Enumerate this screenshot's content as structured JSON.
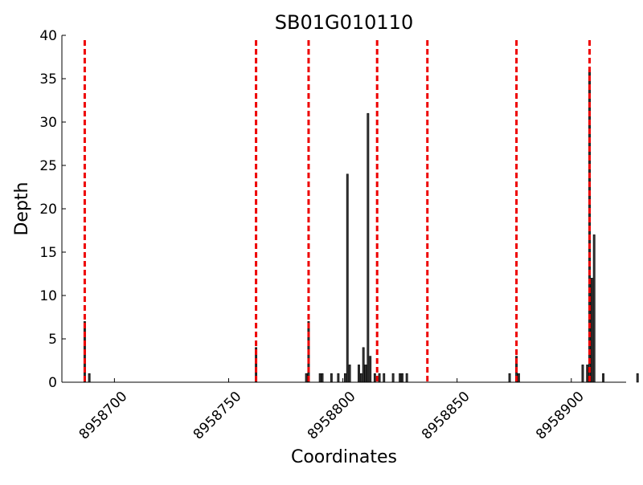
{
  "chart_data": {
    "type": "bar",
    "title": "SB01G010110",
    "xlabel": "Coordinates",
    "ylabel": "Depth",
    "xlim": [
      8958677,
      8958924
    ],
    "ylim": [
      0,
      40
    ],
    "xticks": [
      8958700,
      8958750,
      8958800,
      8958850,
      8958900
    ],
    "yticks": [
      0,
      5,
      10,
      15,
      20,
      25,
      30,
      35,
      40
    ],
    "grid": false,
    "bar_color": "#333333",
    "marker_color": "#ee0000",
    "vertical_markers": [
      8958687,
      8958762,
      8958785,
      8958815,
      8958837,
      8958876,
      8958908
    ],
    "bars": [
      {
        "x": 8958687,
        "y": 7
      },
      {
        "x": 8958689,
        "y": 1
      },
      {
        "x": 8958762,
        "y": 4
      },
      {
        "x": 8958784,
        "y": 1
      },
      {
        "x": 8958785,
        "y": 7
      },
      {
        "x": 8958790,
        "y": 1
      },
      {
        "x": 8958791,
        "y": 1
      },
      {
        "x": 8958795,
        "y": 1
      },
      {
        "x": 8958798,
        "y": 1
      },
      {
        "x": 8958801,
        "y": 1
      },
      {
        "x": 8958802,
        "y": 24
      },
      {
        "x": 8958803,
        "y": 2
      },
      {
        "x": 8958807,
        "y": 2
      },
      {
        "x": 8958808,
        "y": 1
      },
      {
        "x": 8958809,
        "y": 4
      },
      {
        "x": 8958810,
        "y": 2
      },
      {
        "x": 8958811,
        "y": 31
      },
      {
        "x": 8958812,
        "y": 3
      },
      {
        "x": 8958814,
        "y": 1
      },
      {
        "x": 8958816,
        "y": 1
      },
      {
        "x": 8958818,
        "y": 1
      },
      {
        "x": 8958822,
        "y": 1
      },
      {
        "x": 8958825,
        "y": 1
      },
      {
        "x": 8958826,
        "y": 1
      },
      {
        "x": 8958828,
        "y": 1
      },
      {
        "x": 8958873,
        "y": 1
      },
      {
        "x": 8958876,
        "y": 3
      },
      {
        "x": 8958877,
        "y": 1
      },
      {
        "x": 8958905,
        "y": 2
      },
      {
        "x": 8958907,
        "y": 2
      },
      {
        "x": 8958908,
        "y": 36
      },
      {
        "x": 8958909,
        "y": 12
      },
      {
        "x": 8958910,
        "y": 17
      },
      {
        "x": 8958914,
        "y": 1
      },
      {
        "x": 8958929,
        "y": 1
      }
    ]
  }
}
